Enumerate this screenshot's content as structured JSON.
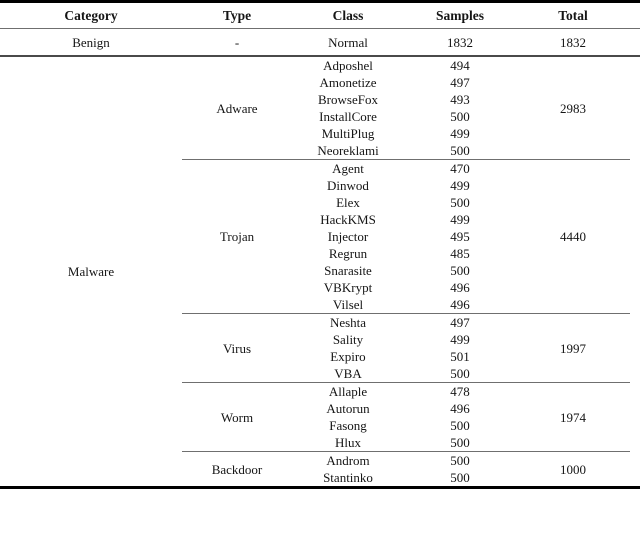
{
  "colors": {
    "text": "#151515",
    "thick_rule": "#000000",
    "thin_rule": "#6f6f6f"
  },
  "table": {
    "headers": [
      "Category",
      "Type",
      "Class",
      "Samples",
      "Total"
    ],
    "benign": {
      "category": "Benign",
      "type": "-",
      "class": "Normal",
      "samples": "1832",
      "total": "1832"
    },
    "malware": {
      "category": "Malware",
      "sections": [
        {
          "type": "Adware",
          "total": "2983",
          "rows": [
            [
              "Adposhel",
              "494"
            ],
            [
              "Amonetize",
              "497"
            ],
            [
              "BrowseFox",
              "493"
            ],
            [
              "InstallCore",
              "500"
            ],
            [
              "MultiPlug",
              "499"
            ],
            [
              "Neoreklami",
              "500"
            ]
          ]
        },
        {
          "type": "Trojan",
          "total": "4440",
          "rows": [
            [
              "Agent",
              "470"
            ],
            [
              "Dinwod",
              "499"
            ],
            [
              "Elex",
              "500"
            ],
            [
              "HackKMS",
              "499"
            ],
            [
              "Injector",
              "495"
            ],
            [
              "Regrun",
              "485"
            ],
            [
              "Snarasite",
              "500"
            ],
            [
              "VBKrypt",
              "496"
            ],
            [
              "Vilsel",
              "496"
            ]
          ]
        },
        {
          "type": "Virus",
          "total": "1997",
          "rows": [
            [
              "Neshta",
              "497"
            ],
            [
              "Sality",
              "499"
            ],
            [
              "Expiro",
              "501"
            ],
            [
              "VBA",
              "500"
            ]
          ]
        },
        {
          "type": "Worm",
          "total": "1974",
          "rows": [
            [
              "Allaple",
              "478"
            ],
            [
              "Autorun",
              "496"
            ],
            [
              "Fasong",
              "500"
            ],
            [
              "Hlux",
              "500"
            ]
          ]
        },
        {
          "type": "Backdoor",
          "total": "1000",
          "rows": [
            [
              "Androm",
              "500"
            ],
            [
              "Stantinko",
              "500"
            ]
          ]
        }
      ]
    }
  }
}
